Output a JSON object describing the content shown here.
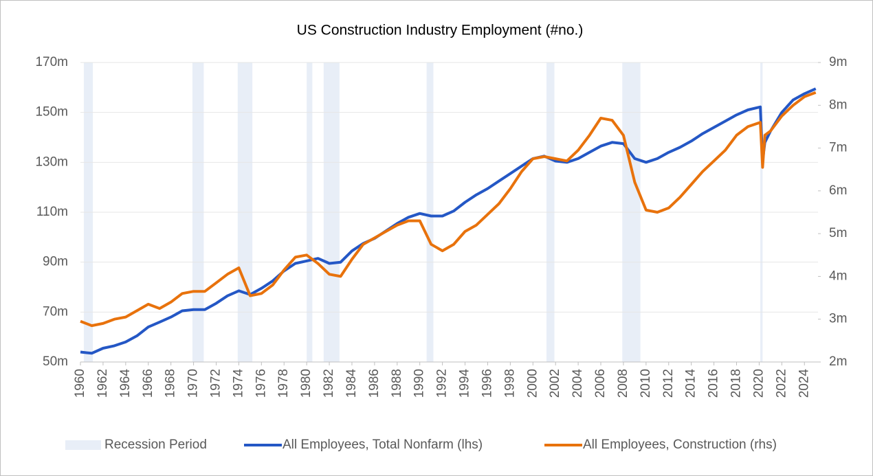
{
  "chart_data": {
    "type": "line",
    "title": "US Construction Industry Employment (#no.)",
    "x": [
      1960,
      1961,
      1962,
      1963,
      1964,
      1965,
      1966,
      1967,
      1968,
      1969,
      1970,
      1971,
      1972,
      1973,
      1974,
      1975,
      1976,
      1977,
      1978,
      1979,
      1980,
      1981,
      1982,
      1983,
      1984,
      1985,
      1986,
      1987,
      1988,
      1989,
      1990,
      1991,
      1992,
      1993,
      1994,
      1995,
      1996,
      1997,
      1998,
      1999,
      2000,
      2001,
      2002,
      2003,
      2004,
      2005,
      2006,
      2007,
      2008,
      2009,
      2010,
      2011,
      2012,
      2013,
      2014,
      2015,
      2016,
      2017,
      2018,
      2019,
      2020.1,
      2020.3,
      2020.5,
      2021,
      2022,
      2023,
      2024,
      2025
    ],
    "series": [
      {
        "name": "All Employees, Total Nonfarm (lhs)",
        "color": "#2457c5",
        "axis": "y",
        "values": [
          54,
          53.5,
          55.5,
          56.5,
          58,
          60.5,
          64,
          66,
          68,
          70.5,
          71,
          71,
          73.5,
          76.5,
          78.5,
          77,
          79.5,
          82.5,
          86.5,
          89.5,
          90.5,
          91.5,
          89.5,
          90,
          94.5,
          97.5,
          99.5,
          102.5,
          105.5,
          108,
          109.5,
          108.5,
          108.5,
          110.5,
          114,
          117,
          119.5,
          122.5,
          125.5,
          128.5,
          131.5,
          132.5,
          130.5,
          130,
          131.5,
          134,
          136.5,
          138,
          137.5,
          131.5,
          130,
          131.5,
          134,
          136,
          138.5,
          141.5,
          144,
          146.5,
          149,
          151,
          152.2,
          130.5,
          138,
          142.5,
          150,
          155,
          157.5,
          159.5
        ]
      },
      {
        "name": "All Employees, Construction (rhs)",
        "color": "#e8720c",
        "axis": "y2",
        "values": [
          2.95,
          2.85,
          2.9,
          3.0,
          3.05,
          3.2,
          3.35,
          3.25,
          3.4,
          3.6,
          3.65,
          3.65,
          3.85,
          4.05,
          4.2,
          3.55,
          3.6,
          3.8,
          4.15,
          4.45,
          4.5,
          4.3,
          4.05,
          4.0,
          4.4,
          4.75,
          4.9,
          5.05,
          5.2,
          5.3,
          5.3,
          4.75,
          4.6,
          4.75,
          5.05,
          5.2,
          5.45,
          5.7,
          6.05,
          6.45,
          6.75,
          6.8,
          6.75,
          6.7,
          6.95,
          7.3,
          7.7,
          7.65,
          7.3,
          6.2,
          5.55,
          5.5,
          5.6,
          5.85,
          6.15,
          6.45,
          6.7,
          6.95,
          7.3,
          7.5,
          7.6,
          6.55,
          7.3,
          7.4,
          7.75,
          8.0,
          8.2,
          8.3
        ]
      }
    ],
    "bands": {
      "name": "Recession Period",
      "color": "#e8eef7",
      "periods": [
        [
          1960.3,
          1961.1
        ],
        [
          1969.9,
          1970.9
        ],
        [
          1973.9,
          1975.2
        ],
        [
          1980.0,
          1980.5
        ],
        [
          1981.5,
          1982.9
        ],
        [
          1990.6,
          1991.2
        ],
        [
          2001.2,
          2001.9
        ],
        [
          2007.9,
          2009.5
        ],
        [
          2020.1,
          2020.3
        ]
      ]
    },
    "xlim": [
      1960,
      2025.2
    ],
    "xticks": [
      1960,
      1962,
      1964,
      1966,
      1968,
      1970,
      1972,
      1974,
      1976,
      1978,
      1980,
      1982,
      1984,
      1986,
      1988,
      1990,
      1992,
      1994,
      1996,
      1998,
      2000,
      2002,
      2004,
      2006,
      2008,
      2010,
      2012,
      2014,
      2016,
      2018,
      2020,
      2022,
      2024
    ],
    "ylim": [
      50,
      170
    ],
    "yticks": [
      {
        "value": 50,
        "label": "50m"
      },
      {
        "value": 70,
        "label": "70m"
      },
      {
        "value": 90,
        "label": "90m"
      },
      {
        "value": 110,
        "label": "110m"
      },
      {
        "value": 130,
        "label": "130m"
      },
      {
        "value": 150,
        "label": "150m"
      },
      {
        "value": 170,
        "label": "170m"
      }
    ],
    "y2lim": [
      2,
      9
    ],
    "y2ticks": [
      {
        "value": 2,
        "label": "2m"
      },
      {
        "value": 3,
        "label": "3m"
      },
      {
        "value": 4,
        "label": "4m"
      },
      {
        "value": 5,
        "label": "5m"
      },
      {
        "value": 6,
        "label": "6m"
      },
      {
        "value": 7,
        "label": "7m"
      },
      {
        "value": 8,
        "label": "8m"
      },
      {
        "value": 9,
        "label": "9m"
      }
    ],
    "grid": true,
    "legend": "bottom"
  }
}
